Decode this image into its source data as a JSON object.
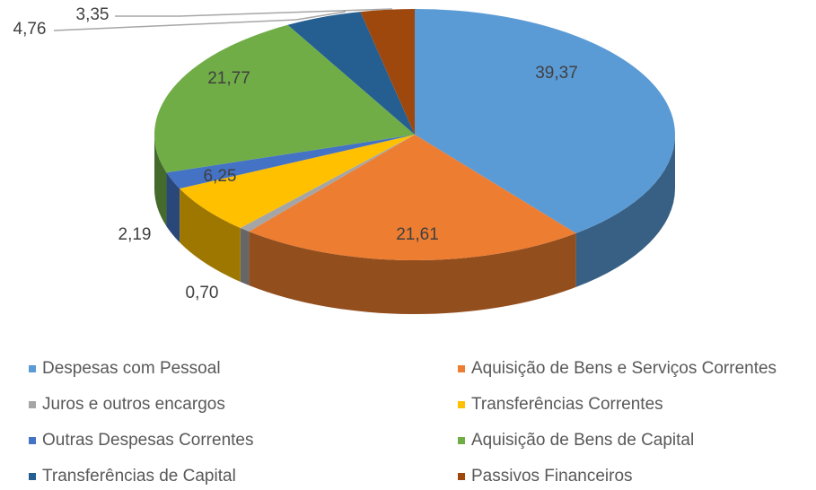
{
  "chart_data": {
    "type": "pie",
    "categories": [
      "Despesas com Pessoal",
      "Aquisição de Bens e Serviços Correntes",
      "Juros e outros encargos",
      "Transferências Correntes",
      "Outras Despesas Correntes",
      "Aquisição de Bens de Capital",
      "Transferências de Capital",
      "Passivos Financeiros"
    ],
    "values": [
      39.37,
      21.61,
      0.7,
      6.25,
      2.19,
      21.77,
      4.76,
      3.35
    ],
    "value_labels": [
      "39,37",
      "21,61",
      "0,70",
      "6,25",
      "2,19",
      "21,77",
      "4,76",
      "3,35"
    ],
    "colors": [
      "#5b9bd5",
      "#ed7d31",
      "#a5a5a5",
      "#ffc000",
      "#4472c4",
      "#70ad47",
      "#255e91",
      "#9e480e"
    ],
    "legend": "bottom"
  }
}
